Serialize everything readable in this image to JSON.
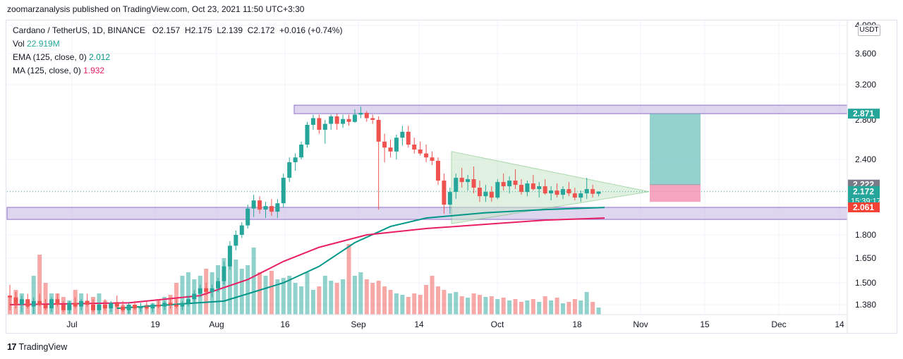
{
  "header": {
    "publish_line": "zoomarzanalysis published on TradingView.com, Oct 23, 2021 11:50 UTC+3:30"
  },
  "legend": {
    "symbol_line": "Cardano / TetherUS, 1D, BINANCE",
    "ohlc": {
      "o": "O2.157",
      "h": "H2.175",
      "l": "L2.139",
      "c": "C2.172",
      "chg": "+0.016 (+0.74%)"
    },
    "vol_label": "Vol",
    "vol_value": "22.919M",
    "ema_label": "EMA (125, close, 0)",
    "ema_value": "2.012",
    "ma_label": "MA (125, close, 0)",
    "ma_value": "1.932"
  },
  "currency": "USDT",
  "footer": {
    "brand": "TradingView"
  },
  "colors": {
    "up": "#26a69a",
    "down": "#ef5350",
    "ema": "#009688",
    "ma": "#e91e63",
    "zone": "#d1c4e9",
    "zone_border": "#5e35b1",
    "triangle": "#c8e6c9",
    "target_up": "#4db6ac",
    "target_down": "#f48fb1"
  },
  "chart_data": {
    "type": "candlestick",
    "title": "",
    "xlabel": "",
    "ylabel": "",
    "y_ticks": [
      "4.000",
      "3.600",
      "3.200",
      "2.800",
      "2.400",
      "1.800",
      "1.650",
      "1.500",
      "1.380"
    ],
    "x_ticks": [
      "Jul",
      "19",
      "Aug",
      "16",
      "Sep",
      "14",
      "Oct",
      "18",
      "Nov",
      "15",
      "Dec",
      "14"
    ],
    "price_labels": [
      {
        "value": "2.871",
        "kind": "zone-top"
      },
      {
        "value": "2.222",
        "kind": "target-entry"
      },
      {
        "value": "2.172",
        "kind": "last",
        "countdown": "15:39:17"
      },
      {
        "value": "2.061",
        "kind": "zone-bottom"
      }
    ],
    "candles": [
      [
        1.43,
        1.49,
        1.35,
        1.42
      ],
      [
        1.42,
        1.45,
        1.36,
        1.38
      ],
      [
        1.38,
        1.43,
        1.34,
        1.41
      ],
      [
        1.41,
        1.44,
        1.36,
        1.37
      ],
      [
        1.37,
        1.42,
        1.33,
        1.4
      ],
      [
        1.4,
        1.44,
        1.37,
        1.38
      ],
      [
        1.38,
        1.41,
        1.35,
        1.36
      ],
      [
        1.36,
        1.42,
        1.34,
        1.41
      ],
      [
        1.41,
        1.44,
        1.37,
        1.38
      ],
      [
        1.38,
        1.4,
        1.34,
        1.35
      ],
      [
        1.35,
        1.4,
        1.33,
        1.39
      ],
      [
        1.39,
        1.42,
        1.36,
        1.37
      ],
      [
        1.37,
        1.41,
        1.35,
        1.4
      ],
      [
        1.4,
        1.44,
        1.37,
        1.38
      ],
      [
        1.38,
        1.41,
        1.34,
        1.35
      ],
      [
        1.35,
        1.39,
        1.33,
        1.38
      ],
      [
        1.38,
        1.41,
        1.35,
        1.36
      ],
      [
        1.36,
        1.4,
        1.34,
        1.39
      ],
      [
        1.39,
        1.43,
        1.36,
        1.37
      ],
      [
        1.37,
        1.4,
        1.34,
        1.35
      ],
      [
        1.35,
        1.39,
        1.33,
        1.38
      ],
      [
        1.38,
        1.4,
        1.35,
        1.36
      ],
      [
        1.36,
        1.39,
        1.34,
        1.37
      ],
      [
        1.37,
        1.4,
        1.35,
        1.36
      ],
      [
        1.36,
        1.39,
        1.34,
        1.38
      ],
      [
        1.38,
        1.41,
        1.36,
        1.37
      ],
      [
        1.37,
        1.4,
        1.35,
        1.39
      ],
      [
        1.39,
        1.42,
        1.36,
        1.38
      ],
      [
        1.38,
        1.41,
        1.36,
        1.37
      ],
      [
        1.37,
        1.4,
        1.35,
        1.39
      ],
      [
        1.39,
        1.43,
        1.37,
        1.41
      ],
      [
        1.41,
        1.46,
        1.39,
        1.44
      ],
      [
        1.44,
        1.49,
        1.42,
        1.47
      ],
      [
        1.47,
        1.5,
        1.43,
        1.45
      ],
      [
        1.45,
        1.49,
        1.42,
        1.47
      ],
      [
        1.47,
        1.53,
        1.45,
        1.51
      ],
      [
        1.51,
        1.63,
        1.49,
        1.6
      ],
      [
        1.6,
        1.76,
        1.58,
        1.73
      ],
      [
        1.73,
        1.84,
        1.7,
        1.8
      ],
      [
        1.8,
        1.92,
        1.78,
        1.89
      ],
      [
        1.89,
        2.08,
        1.86,
        2.05
      ],
      [
        2.05,
        2.15,
        1.97,
        2.11
      ],
      [
        2.11,
        2.14,
        2.0,
        2.04
      ],
      [
        2.04,
        2.1,
        1.96,
        2.07
      ],
      [
        2.07,
        2.12,
        1.98,
        2.02
      ],
      [
        2.02,
        2.12,
        1.96,
        2.09
      ],
      [
        2.09,
        2.3,
        2.06,
        2.27
      ],
      [
        2.27,
        2.42,
        2.24,
        2.38
      ],
      [
        2.38,
        2.46,
        2.32,
        2.42
      ],
      [
        2.42,
        2.58,
        2.4,
        2.55
      ],
      [
        2.55,
        2.78,
        2.52,
        2.75
      ],
      [
        2.75,
        2.86,
        2.7,
        2.82
      ],
      [
        2.82,
        2.86,
        2.66,
        2.7
      ],
      [
        2.7,
        2.8,
        2.56,
        2.76
      ],
      [
        2.76,
        2.86,
        2.7,
        2.84
      ],
      [
        2.84,
        2.87,
        2.7,
        2.76
      ],
      [
        2.76,
        2.86,
        2.72,
        2.81
      ],
      [
        2.81,
        2.86,
        2.74,
        2.78
      ],
      [
        2.78,
        2.92,
        2.77,
        2.86
      ],
      [
        2.86,
        2.95,
        2.82,
        2.88
      ],
      [
        2.88,
        2.9,
        2.78,
        2.82
      ],
      [
        2.82,
        2.86,
        2.76,
        2.8
      ],
      [
        2.8,
        2.84,
        2.04,
        2.58
      ],
      [
        2.58,
        2.66,
        2.38,
        2.52
      ],
      [
        2.52,
        2.6,
        2.42,
        2.48
      ],
      [
        2.48,
        2.65,
        2.4,
        2.62
      ],
      [
        2.62,
        2.74,
        2.54,
        2.68
      ],
      [
        2.68,
        2.74,
        2.52,
        2.55
      ],
      [
        2.55,
        2.62,
        2.46,
        2.5
      ],
      [
        2.5,
        2.58,
        2.44,
        2.46
      ],
      [
        2.46,
        2.55,
        2.38,
        2.42
      ],
      [
        2.42,
        2.48,
        2.36,
        2.39
      ],
      [
        2.39,
        2.42,
        2.22,
        2.25
      ],
      [
        2.25,
        2.3,
        2.0,
        2.08
      ],
      [
        2.08,
        2.2,
        2.0,
        2.17
      ],
      [
        2.17,
        2.3,
        2.12,
        2.27
      ],
      [
        2.27,
        2.34,
        2.2,
        2.24
      ],
      [
        2.24,
        2.29,
        2.18,
        2.26
      ],
      [
        2.26,
        2.35,
        2.16,
        2.2
      ],
      [
        2.2,
        2.25,
        2.1,
        2.14
      ],
      [
        2.14,
        2.22,
        2.1,
        2.17
      ],
      [
        2.17,
        2.21,
        2.1,
        2.13
      ],
      [
        2.13,
        2.26,
        2.12,
        2.24
      ],
      [
        2.24,
        2.3,
        2.18,
        2.21
      ],
      [
        2.21,
        2.28,
        2.16,
        2.25
      ],
      [
        2.25,
        2.33,
        2.19,
        2.22
      ],
      [
        2.22,
        2.26,
        2.15,
        2.17
      ],
      [
        2.17,
        2.25,
        2.14,
        2.23
      ],
      [
        2.23,
        2.29,
        2.18,
        2.19
      ],
      [
        2.19,
        2.24,
        2.13,
        2.21
      ],
      [
        2.21,
        2.26,
        2.15,
        2.16
      ],
      [
        2.16,
        2.21,
        2.11,
        2.18
      ],
      [
        2.18,
        2.23,
        2.13,
        2.15
      ],
      [
        2.15,
        2.21,
        2.12,
        2.19
      ],
      [
        2.19,
        2.24,
        2.14,
        2.16
      ],
      [
        2.16,
        2.2,
        2.11,
        2.13
      ],
      [
        2.13,
        2.18,
        2.1,
        2.16
      ],
      [
        2.16,
        2.27,
        2.12,
        2.19
      ],
      [
        2.19,
        2.22,
        2.13,
        2.157
      ],
      [
        2.157,
        2.175,
        2.139,
        2.172
      ]
    ],
    "volume": [
      0.25,
      0.35,
      0.3,
      0.2,
      0.55,
      0.85,
      0.45,
      0.3,
      0.3,
      0.25,
      0.2,
      0.35,
      0.3,
      0.2,
      0.25,
      0.3,
      0.2,
      0.15,
      0.18,
      0.14,
      0.12,
      0.1,
      0.12,
      0.14,
      0.16,
      0.22,
      0.25,
      0.28,
      0.45,
      0.55,
      0.6,
      0.5,
      0.55,
      0.65,
      0.6,
      0.7,
      0.8,
      0.85,
      0.78,
      0.65,
      0.7,
      0.95,
      0.6,
      0.55,
      0.62,
      0.5,
      0.52,
      0.55,
      0.45,
      0.4,
      0.6,
      0.35,
      0.4,
      0.55,
      0.48,
      0.45,
      0.5,
      1.0,
      0.55,
      0.6,
      0.5,
      0.45,
      0.48,
      0.4,
      0.35,
      0.3,
      0.28,
      0.25,
      0.3,
      0.28,
      0.42,
      0.55,
      0.4,
      0.35,
      0.3,
      0.32,
      0.26,
      0.24,
      0.3,
      0.28,
      0.25,
      0.26,
      0.22,
      0.24,
      0.2,
      0.22,
      0.18,
      0.2,
      0.22,
      0.18,
      0.26,
      0.2,
      0.24,
      0.16,
      0.18,
      0.22,
      0.2,
      0.32,
      0.18,
      0.1
    ],
    "ema_125": [
      [
        18,
        1.36
      ],
      [
        36,
        1.4
      ],
      [
        46,
        1.5
      ],
      [
        52,
        1.6
      ],
      [
        58,
        1.75
      ],
      [
        64,
        1.88
      ],
      [
        70,
        1.96
      ],
      [
        80,
        2.01
      ],
      [
        90,
        2.04
      ],
      [
        100,
        2.06
      ]
    ],
    "ma_125": [
      [
        0,
        1.38
      ],
      [
        20,
        1.39
      ],
      [
        32,
        1.43
      ],
      [
        40,
        1.52
      ],
      [
        46,
        1.63
      ],
      [
        52,
        1.72
      ],
      [
        60,
        1.8
      ],
      [
        70,
        1.86
      ],
      [
        80,
        1.9
      ],
      [
        90,
        1.94
      ],
      [
        100,
        1.96
      ]
    ],
    "zones": [
      {
        "low": 2.838,
        "high": 2.871,
        "kind": "resistance"
      },
      {
        "low": 1.96,
        "high": 2.061,
        "kind": "support"
      }
    ],
    "triangle": {
      "upper_start": 2.48,
      "lower_start": 2.0,
      "apex": 2.172
    },
    "target_box": {
      "entry": 2.222,
      "target": 2.871,
      "stop": 2.1
    }
  }
}
